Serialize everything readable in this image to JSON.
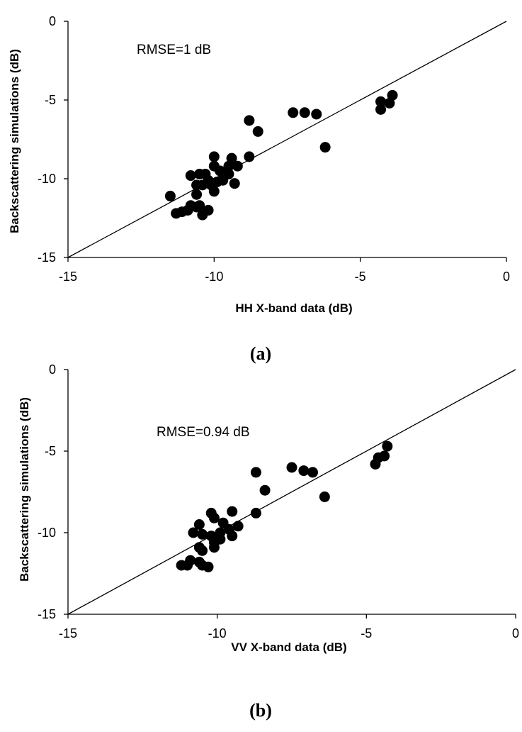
{
  "chart_data": [
    {
      "type": "scatter",
      "annotation": "RMSE=1 dB",
      "xlabel": "HH X-band data (dB)",
      "ylabel": "Backscattering simulations (dB)",
      "caption": "(a)",
      "xlim": [
        -15,
        0
      ],
      "ylim": [
        -15,
        0
      ],
      "xticks": [
        "-15",
        "-10",
        "-5",
        "0"
      ],
      "yticks": [
        "0",
        "-5",
        "-10",
        "-15"
      ],
      "reference_line": [
        [
          -15,
          -15
        ],
        [
          0,
          0
        ]
      ],
      "points": [
        [
          -11.5,
          -11.1
        ],
        [
          -11.3,
          -12.2
        ],
        [
          -11.1,
          -12.1
        ],
        [
          -10.9,
          -12.0
        ],
        [
          -10.8,
          -11.7
        ],
        [
          -10.6,
          -11.8
        ],
        [
          -10.5,
          -11.7
        ],
        [
          -10.6,
          -11.0
        ],
        [
          -10.6,
          -10.4
        ],
        [
          -10.8,
          -9.8
        ],
        [
          -10.5,
          -9.7
        ],
        [
          -10.3,
          -9.7
        ],
        [
          -10.2,
          -10.1
        ],
        [
          -10.4,
          -10.4
        ],
        [
          -10.1,
          -10.4
        ],
        [
          -9.9,
          -10.2
        ],
        [
          -10.0,
          -10.8
        ],
        [
          -10.2,
          -12.0
        ],
        [
          -10.4,
          -12.3
        ],
        [
          -10.0,
          -9.2
        ],
        [
          -10.0,
          -8.6
        ],
        [
          -9.8,
          -9.5
        ],
        [
          -9.7,
          -10.1
        ],
        [
          -9.5,
          -9.2
        ],
        [
          -9.5,
          -9.7
        ],
        [
          -9.4,
          -8.7
        ],
        [
          -9.3,
          -10.3
        ],
        [
          -9.2,
          -9.2
        ],
        [
          -8.8,
          -8.6
        ],
        [
          -8.8,
          -6.3
        ],
        [
          -8.5,
          -7.0
        ],
        [
          -7.3,
          -5.8
        ],
        [
          -6.9,
          -5.8
        ],
        [
          -6.5,
          -5.9
        ],
        [
          -6.2,
          -8.0
        ],
        [
          -4.3,
          -5.1
        ],
        [
          -4.3,
          -5.6
        ],
        [
          -4.0,
          -5.2
        ],
        [
          -3.9,
          -4.7
        ]
      ]
    },
    {
      "type": "scatter",
      "annotation": "RMSE=0.94 dB",
      "xlabel": "VV X-band data (dB)",
      "ylabel": "Backscattering simulations (dB)",
      "caption": "(b)",
      "xlim": [
        -15,
        0
      ],
      "ylim": [
        -15,
        0
      ],
      "xticks": [
        "-15",
        "-10",
        "-5",
        "0"
      ],
      "yticks": [
        "0",
        "-5",
        "-10",
        "-15"
      ],
      "reference_line": [
        [
          -15,
          -15
        ],
        [
          0,
          0
        ]
      ],
      "points": [
        [
          -11.2,
          -12.0
        ],
        [
          -11.0,
          -12.0
        ],
        [
          -10.9,
          -11.7
        ],
        [
          -10.6,
          -11.8
        ],
        [
          -10.5,
          -12.0
        ],
        [
          -10.3,
          -12.1
        ],
        [
          -10.8,
          -10.0
        ],
        [
          -10.6,
          -9.5
        ],
        [
          -10.5,
          -10.1
        ],
        [
          -10.6,
          -10.9
        ],
        [
          -10.5,
          -11.1
        ],
        [
          -10.2,
          -10.2
        ],
        [
          -10.1,
          -10.6
        ],
        [
          -10.1,
          -10.9
        ],
        [
          -9.9,
          -10.4
        ],
        [
          -9.9,
          -10.0
        ],
        [
          -10.2,
          -8.8
        ],
        [
          -10.1,
          -9.1
        ],
        [
          -9.8,
          -9.4
        ],
        [
          -9.6,
          -9.8
        ],
        [
          -9.5,
          -10.2
        ],
        [
          -9.5,
          -8.7
        ],
        [
          -9.3,
          -9.6
        ],
        [
          -8.7,
          -8.8
        ],
        [
          -8.7,
          -6.3
        ],
        [
          -8.4,
          -7.4
        ],
        [
          -7.5,
          -6.0
        ],
        [
          -7.1,
          -6.2
        ],
        [
          -6.8,
          -6.3
        ],
        [
          -6.4,
          -7.8
        ],
        [
          -4.7,
          -5.8
        ],
        [
          -4.6,
          -5.4
        ],
        [
          -4.4,
          -5.3
        ],
        [
          -4.3,
          -4.7
        ]
      ]
    }
  ]
}
